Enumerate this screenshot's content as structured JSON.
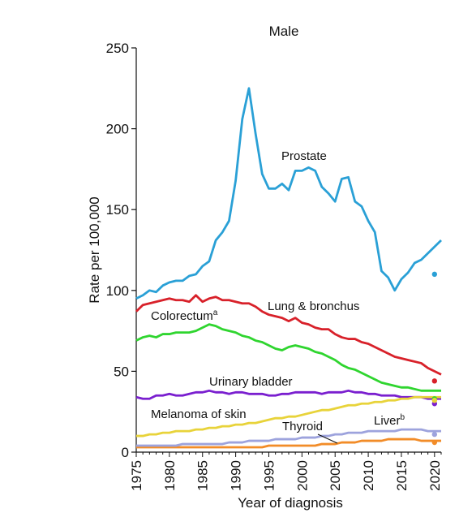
{
  "chart_data": {
    "type": "line",
    "title": "Male",
    "xlabel": "Year of diagnosis",
    "ylabel": "Rate per 100,000",
    "xlim": [
      1975,
      2021
    ],
    "ylim": [
      0,
      250
    ],
    "xticks": [
      1975,
      1980,
      1985,
      1990,
      1995,
      2000,
      2005,
      2010,
      2015,
      2020
    ],
    "yticks": [
      0,
      50,
      100,
      150,
      200,
      250
    ],
    "x_start": 1975,
    "x_end": 2021,
    "series": [
      {
        "name": "Prostate",
        "color": "#2aa0d6",
        "points_2020": 110,
        "values": [
          95,
          97,
          100,
          99,
          103,
          105,
          106,
          106,
          109,
          110,
          115,
          118,
          131,
          136,
          143,
          168,
          206,
          225,
          197,
          172,
          163,
          163,
          166,
          162,
          174,
          174,
          176,
          174,
          164,
          160,
          155,
          169,
          170,
          155,
          152,
          143,
          136,
          112,
          108,
          100,
          107,
          111,
          117,
          119,
          123,
          127,
          131
        ]
      },
      {
        "name": "Lung & bronchus",
        "color": "#d8212a",
        "points_2020": 44,
        "values": [
          87,
          91,
          92,
          93,
          94,
          95,
          94,
          94,
          93,
          97,
          93,
          95,
          96,
          94,
          94,
          93,
          92,
          92,
          90,
          87,
          85,
          84,
          83,
          81,
          83,
          80,
          79,
          77,
          76,
          76,
          73,
          71,
          70,
          70,
          68,
          67,
          65,
          63,
          61,
          59,
          58,
          57,
          56,
          55,
          52,
          50,
          48
        ]
      },
      {
        "name": "Colorectum",
        "sup": "a",
        "color": "#2fd52f",
        "points_2020": 33,
        "values": [
          69,
          71,
          72,
          71,
          73,
          73,
          74,
          74,
          74,
          75,
          77,
          79,
          78,
          76,
          75,
          74,
          72,
          71,
          69,
          68,
          66,
          64,
          63,
          65,
          66,
          65,
          64,
          62,
          61,
          59,
          57,
          54,
          52,
          51,
          49,
          47,
          45,
          43,
          42,
          41,
          40,
          40,
          39,
          38,
          38,
          38,
          38
        ]
      },
      {
        "name": "Urinary bladder",
        "color": "#7a1fcf",
        "points_2020": 30,
        "values": [
          34,
          33,
          33,
          35,
          35,
          36,
          35,
          35,
          36,
          37,
          37,
          38,
          37,
          37,
          36,
          37,
          37,
          36,
          36,
          36,
          35,
          35,
          36,
          36,
          37,
          37,
          37,
          37,
          36,
          37,
          37,
          37,
          38,
          37,
          37,
          36,
          36,
          35,
          35,
          35,
          34,
          34,
          34,
          34,
          33,
          33,
          33
        ]
      },
      {
        "name": "Melanoma of skin",
        "color": "#e8d33a",
        "points_2020": 32,
        "values": [
          10,
          10,
          11,
          11,
          12,
          12,
          13,
          13,
          13,
          14,
          14,
          15,
          15,
          16,
          16,
          17,
          17,
          18,
          18,
          19,
          20,
          21,
          21,
          22,
          22,
          23,
          24,
          25,
          26,
          26,
          27,
          28,
          29,
          29,
          30,
          30,
          31,
          31,
          32,
          32,
          33,
          33,
          34,
          34,
          34,
          34,
          34
        ]
      },
      {
        "name": "Thyroid",
        "color": "#f28c28",
        "points_2020": 6,
        "values": [
          3,
          3,
          3,
          3,
          3,
          3,
          3,
          3,
          3,
          3,
          3,
          3,
          3,
          3,
          3,
          3,
          3,
          3,
          3,
          3,
          4,
          4,
          4,
          4,
          4,
          4,
          4,
          4,
          5,
          5,
          5,
          6,
          6,
          6,
          7,
          7,
          7,
          7,
          8,
          8,
          8,
          8,
          8,
          7,
          7,
          7,
          7
        ]
      },
      {
        "name": "Liver",
        "sup": "b",
        "color": "#9da3dd",
        "points_2020": 11,
        "values": [
          4,
          4,
          4,
          4,
          4,
          4,
          4,
          5,
          5,
          5,
          5,
          5,
          5,
          5,
          6,
          6,
          6,
          7,
          7,
          7,
          7,
          8,
          8,
          8,
          8,
          9,
          9,
          9,
          10,
          10,
          11,
          11,
          12,
          12,
          12,
          13,
          13,
          13,
          13,
          13,
          14,
          14,
          14,
          14,
          13,
          13,
          13
        ]
      }
    ]
  }
}
